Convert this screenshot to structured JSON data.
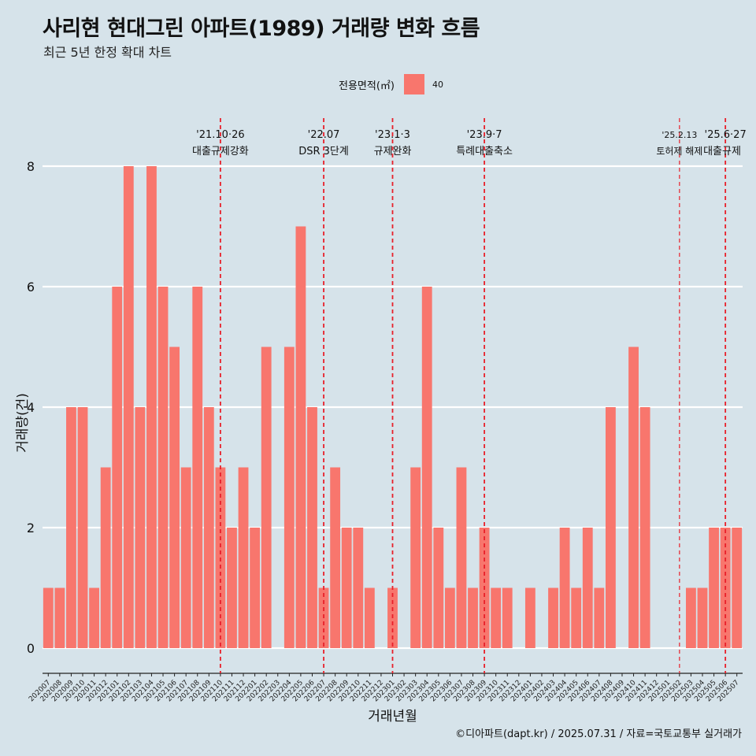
{
  "title": "사리현 현대그린 아파트(1989) 거래량 변화 흐름",
  "subtitle": "최근 5년 한정 확대 차트",
  "legend": {
    "title": "전용면적(㎡)",
    "label": "40"
  },
  "caption": "©디아파트(dapt.kr) / 2025.07.31 / 자료=국토교통부 실거래가",
  "colors": {
    "bar": "#f8766d",
    "background": "#d6e3ea",
    "grid": "#ffffff",
    "event_line": "#e8202a"
  },
  "chart_data": {
    "type": "bar",
    "xlabel": "거래년월",
    "ylabel": "거래량(건)",
    "ylim": [
      0,
      8
    ],
    "yticks": [
      0,
      2,
      4,
      6,
      8
    ],
    "categories": [
      "202007",
      "202008",
      "202009",
      "202010",
      "202011",
      "202012",
      "202101",
      "202102",
      "202103",
      "202104",
      "202105",
      "202106",
      "202107",
      "202108",
      "202109",
      "202110",
      "202111",
      "202112",
      "202201",
      "202202",
      "202203",
      "202204",
      "202205",
      "202206",
      "202207",
      "202208",
      "202209",
      "202210",
      "202211",
      "202212",
      "202301",
      "202302",
      "202303",
      "202304",
      "202305",
      "202306",
      "202307",
      "202308",
      "202309",
      "202310",
      "202311",
      "202312",
      "202401",
      "202402",
      "202403",
      "202404",
      "202405",
      "202406",
      "202407",
      "202408",
      "202409",
      "202410",
      "202411",
      "202412",
      "202501",
      "202502",
      "202503",
      "202504",
      "202505",
      "202506",
      "202507"
    ],
    "series": [
      {
        "name": "40",
        "values": [
          1,
          1,
          4,
          4,
          1,
          3,
          6,
          8,
          4,
          8,
          6,
          5,
          3,
          6,
          4,
          3,
          2,
          3,
          2,
          5,
          0,
          5,
          7,
          4,
          1,
          3,
          2,
          2,
          1,
          0,
          1,
          0,
          3,
          6,
          2,
          1,
          3,
          1,
          2,
          1,
          1,
          0,
          1,
          0,
          1,
          2,
          1,
          2,
          1,
          4,
          0,
          5,
          4,
          0,
          0,
          0,
          1,
          1,
          2,
          2,
          2
        ]
      }
    ],
    "annotations": [
      {
        "category": "202110",
        "date_label": "'21.10·26",
        "text": "대출규제강화"
      },
      {
        "category": "202207",
        "date_label": "'22.07",
        "text": "DSR 3단계"
      },
      {
        "category": "202301",
        "date_label": "'23.1·3",
        "text": "규제완화"
      },
      {
        "category": "202309",
        "date_label": "'23.9·7",
        "text": "특례대출축소"
      },
      {
        "category": "202502",
        "date_label": "'25.2.13",
        "text": "토허제 해제"
      },
      {
        "category": "202506",
        "date_label": "'25.6·27",
        "text": "대출규제"
      }
    ]
  }
}
